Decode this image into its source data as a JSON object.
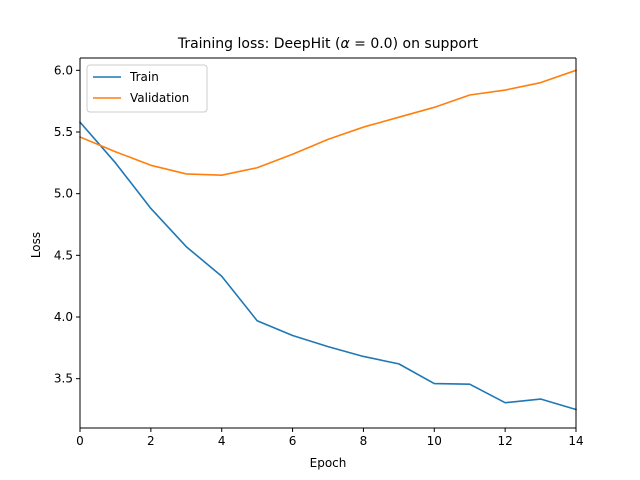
{
  "chart_data": {
    "type": "line",
    "title_main": "Training loss: DeepHit (",
    "title_symbol": "α",
    "title_eq": " = 0.0",
    "title_tail": ") on support",
    "xlabel": "Epoch",
    "ylabel": "Loss",
    "xlim": [
      0,
      14
    ],
    "ylim": [
      3.1,
      6.1
    ],
    "x_ticks": [
      0,
      2,
      4,
      6,
      8,
      10,
      12,
      14
    ],
    "y_ticks": [
      3.5,
      4.0,
      4.5,
      5.0,
      5.5,
      6.0
    ],
    "x": [
      0,
      1,
      2,
      3,
      4,
      5,
      6,
      7,
      8,
      9,
      10,
      11,
      12,
      13,
      14
    ],
    "grid": false,
    "legend_position": "top-left",
    "series": [
      {
        "name": "Train",
        "color": "#1f77b4",
        "values": [
          5.58,
          5.25,
          4.88,
          4.57,
          4.33,
          3.97,
          3.85,
          3.76,
          3.68,
          3.62,
          3.46,
          3.455,
          3.305,
          3.335,
          3.25
        ]
      },
      {
        "name": "Validation",
        "color": "#ff7f0e",
        "values": [
          5.46,
          5.34,
          5.23,
          5.16,
          5.15,
          5.21,
          5.32,
          5.44,
          5.54,
          5.62,
          5.7,
          5.8,
          5.84,
          5.9,
          6.0
        ]
      }
    ]
  }
}
